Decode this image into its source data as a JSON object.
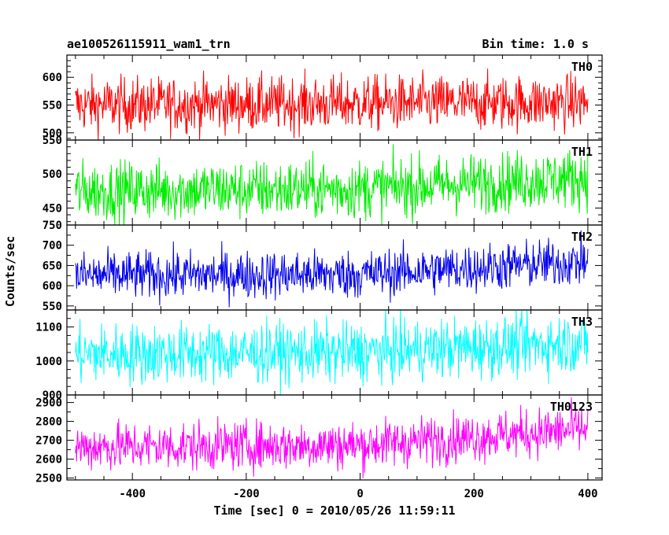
{
  "chart_data": {
    "type": "line",
    "title": "ae100526115911_wam1_trn",
    "subtitle": "Bin time: 1.0 s",
    "xlabel": "Time [sec] 0 = 2010/05/26 11:59:11",
    "ylabel": "Counts/sec",
    "xlim": [
      -515,
      425
    ],
    "xticks": [
      -400,
      -200,
      0,
      200,
      400
    ],
    "x_start": -500,
    "x_end": 400,
    "bin": 1.0,
    "panels": [
      {
        "name": "TH0",
        "color": "#ff0000",
        "ylim": [
          487,
          640
        ],
        "yticks": [
          500,
          550,
          600
        ],
        "trend": [
          [
            -500,
            550
          ],
          [
            400,
            555
          ]
        ],
        "noise": 25
      },
      {
        "name": "TH1",
        "color": "#00ee00",
        "ylim": [
          425,
          550
        ],
        "yticks": [
          450,
          500,
          550
        ],
        "trend": [
          [
            -500,
            475
          ],
          [
            0,
            478
          ],
          [
            400,
            495
          ]
        ],
        "noise": 22
      },
      {
        "name": "TH2",
        "color": "#0000ee",
        "ylim": [
          540,
          750
        ],
        "yticks": [
          550,
          600,
          650,
          700,
          750
        ],
        "trend": [
          [
            -500,
            625
          ],
          [
            0,
            628
          ],
          [
            400,
            660
          ]
        ],
        "noise": 30
      },
      {
        "name": "TH3",
        "color": "#00ffff",
        "ylim": [
          900,
          1150
        ],
        "yticks": [
          900,
          1000,
          1100
        ],
        "trend": [
          [
            -500,
            1020
          ],
          [
            0,
            1025
          ],
          [
            400,
            1055
          ]
        ],
        "noise": 45
      },
      {
        "name": "TH0123",
        "color": "#ff00ff",
        "ylim": [
          2490,
          2940
        ],
        "yticks": [
          2500,
          2600,
          2700,
          2800,
          2900
        ],
        "trend": [
          [
            -500,
            2665
          ],
          [
            0,
            2675
          ],
          [
            400,
            2760
          ]
        ],
        "noise": 65
      }
    ]
  }
}
